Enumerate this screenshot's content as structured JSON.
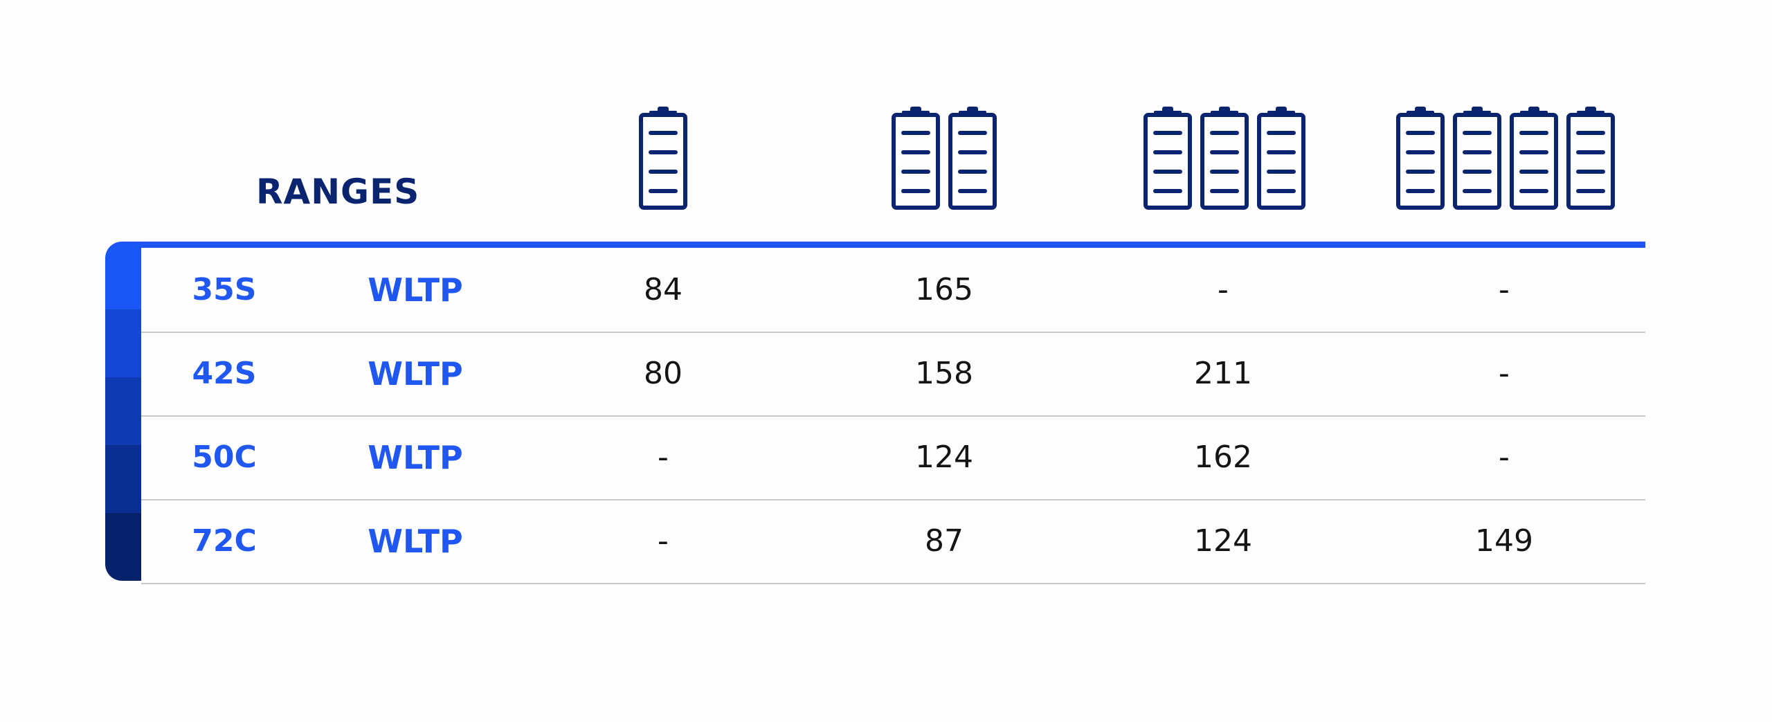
{
  "table": {
    "title": "RANGES",
    "battery_columns": [
      {
        "icon": "battery-icon",
        "battery_count": 1
      },
      {
        "icon": "battery-icon",
        "battery_count": 2
      },
      {
        "icon": "battery-icon",
        "battery_count": 3
      },
      {
        "icon": "battery-icon",
        "battery_count": 4
      }
    ],
    "rows": [
      {
        "model": "35S",
        "standard": "WLTP",
        "values": [
          "84",
          "165",
          "-",
          "-"
        ]
      },
      {
        "model": "42S",
        "standard": "WLTP",
        "values": [
          "80",
          "158",
          "211",
          "-"
        ]
      },
      {
        "model": "50C",
        "standard": "WLTP",
        "values": [
          "-",
          "124",
          "162",
          "-"
        ]
      },
      {
        "model": "72C",
        "standard": "WLTP",
        "values": [
          "-",
          "87",
          "124",
          "149"
        ]
      }
    ]
  },
  "colors": {
    "accent_blue": "#1e56f5",
    "navy": "#0a2470",
    "text": "#141414",
    "divider": "#c8c8cc",
    "side_gradient": [
      "#1a55f6",
      "#1447d4",
      "#0e3bb3",
      "#0a2f92",
      "#06226b"
    ]
  }
}
